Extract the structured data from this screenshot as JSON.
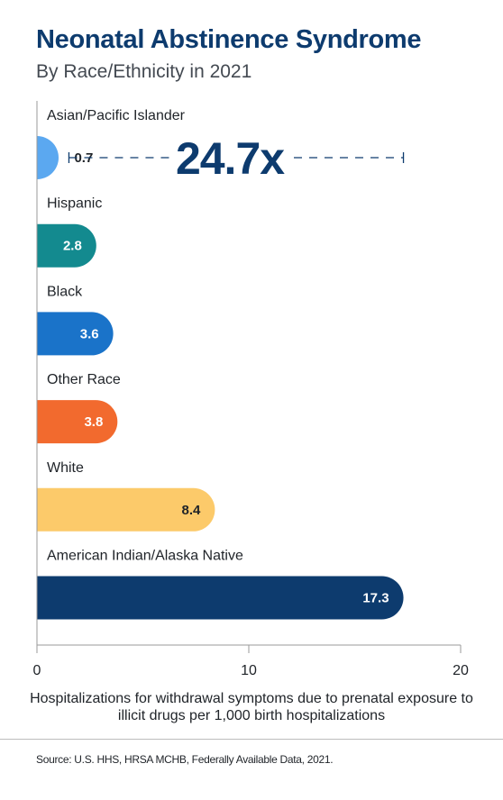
{
  "chart_data": {
    "type": "bar",
    "orientation": "horizontal",
    "title": "Neonatal Abstinence Syndrome",
    "subtitle": "By Race/Ethnicity in 2021",
    "xlabel": "Hospitalizations for withdrawal symptoms due to prenatal exposure to illicit drugs per 1,000 birth hospitalizations",
    "ylabel": "",
    "xlim": [
      0,
      20
    ],
    "xticks": [
      "0",
      "10",
      "20"
    ],
    "grid": false,
    "categories": [
      "Asian/Pacific Islander",
      "Hispanic",
      "Black",
      "Other Race",
      "White",
      "American Indian/Alaska Native"
    ],
    "values": [
      0.7,
      2.8,
      3.6,
      3.8,
      8.4,
      17.3
    ],
    "value_labels": [
      "0.7",
      "2.8",
      "3.6",
      "3.8",
      "8.4",
      "17.3"
    ],
    "colors": [
      "#5ba8f0",
      "#138a8f",
      "#1a73c9",
      "#f26a2e",
      "#fcca6a",
      "#0d3b6e"
    ],
    "label_colors": [
      "#1f2328",
      "#ffffff",
      "#ffffff",
      "#ffffff",
      "#1f2328",
      "#ffffff"
    ],
    "annotation": {
      "text": "24.7x",
      "from_value": 0.7,
      "to_value": 17.3,
      "category_index": 0
    }
  },
  "source": "Source: U.S. HHS, HRSA MCHB, Federally Available Data, 2021."
}
